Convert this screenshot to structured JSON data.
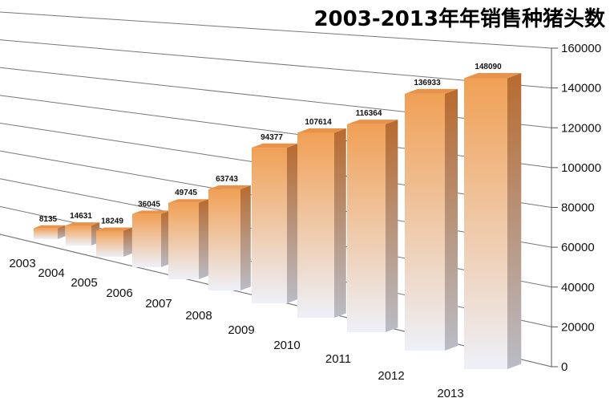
{
  "chart_data": {
    "type": "bar",
    "title": "2003-2013年年销售种猪头数",
    "categories": [
      "2003",
      "2004",
      "2005",
      "2006",
      "2007",
      "2008",
      "2009",
      "2010",
      "2011",
      "2012",
      "2013"
    ],
    "values": [
      8135,
      14631,
      18249,
      36045,
      49745,
      63743,
      94377,
      107614,
      116364,
      136933,
      148090
    ],
    "ylim": [
      0,
      160000
    ],
    "yticks": [
      0,
      20000,
      40000,
      60000,
      80000,
      100000,
      120000,
      140000,
      160000
    ],
    "grid": true,
    "style": "3d-column",
    "colors": {
      "front_top": "#f0a055",
      "front_bottom": "#eef0f8",
      "side_top": "#b86a2e",
      "side_bottom": "#b9bcc6",
      "cap": "#e8924a",
      "grid": "#777777"
    }
  }
}
